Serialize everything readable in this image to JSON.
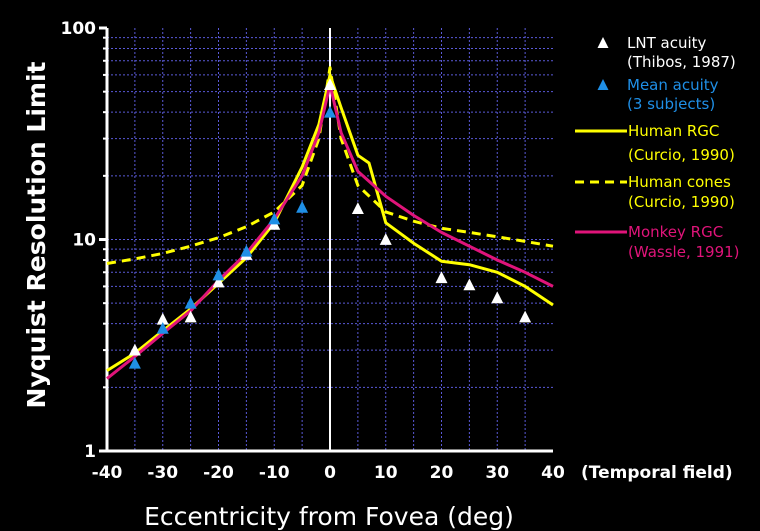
{
  "chart_data": {
    "type": "line",
    "xlabel": "Eccentricity from Fovea (deg)",
    "ylabel": "Nyquist Resolution Limit",
    "x_note": "(Temporal field)",
    "xlim": [
      -40,
      40
    ],
    "ylim": [
      1,
      100
    ],
    "yscale": "log",
    "x_ticks": [
      "-40",
      "-30",
      "-20",
      "-10",
      "0",
      "10",
      "20",
      "30",
      "40"
    ],
    "y_ticks": [
      "1",
      "10",
      "100"
    ],
    "grid": true,
    "legend_position": "right",
    "colors": {
      "white": "#ffffff",
      "blue": "#1f8fe6",
      "yellow": "#ffff00",
      "magenta": "#e0147a"
    },
    "series": [
      {
        "name": "LNT acuity",
        "name2": "(Thibos, 1987)",
        "kind": "marker",
        "color": "#ffffff",
        "x": [
          -35,
          -30,
          -25,
          -20,
          -15,
          -10,
          0,
          5,
          10,
          20,
          25,
          30,
          35
        ],
        "y": [
          3.0,
          4.2,
          4.3,
          6.3,
          8.5,
          11.8,
          54,
          14,
          10,
          6.6,
          6.1,
          5.3,
          4.3
        ]
      },
      {
        "name": "Mean acuity",
        "name2": "(3 subjects)",
        "kind": "marker",
        "color": "#1f8fe6",
        "x": [
          -35,
          -30,
          -25,
          -20,
          -15,
          -10,
          -5,
          0
        ],
        "y": [
          2.6,
          3.8,
          5.0,
          6.8,
          8.8,
          12.5,
          14.2,
          40
        ]
      },
      {
        "name": "Human RGC",
        "name2": "(Curcio, 1990)",
        "kind": "solid",
        "color": "#ffff00",
        "x": [
          -40,
          -35,
          -30,
          -25,
          -20,
          -15,
          -10,
          -5,
          -2,
          0,
          2,
          5,
          7,
          10,
          15,
          20,
          25,
          30,
          35,
          40
        ],
        "y": [
          2.4,
          2.9,
          3.7,
          4.7,
          6.2,
          8.2,
          12.0,
          22,
          35,
          60,
          42,
          25,
          23,
          12,
          9.6,
          7.9,
          7.6,
          7.0,
          6.0,
          4.9
        ]
      },
      {
        "name": "Human cones",
        "name2": "(Curcio, 1990)",
        "kind": "dashed",
        "color": "#ffff00",
        "x": [
          -40,
          -35,
          -30,
          -25,
          -20,
          -15,
          -10,
          -5,
          -2,
          0,
          2,
          5,
          10,
          15,
          20,
          25,
          30,
          35,
          40
        ],
        "y": [
          7.7,
          8.1,
          8.6,
          9.3,
          10.2,
          11.5,
          13.5,
          18,
          30,
          65,
          30,
          18,
          13.5,
          12.2,
          11.3,
          10.8,
          10.3,
          9.8,
          9.3
        ]
      },
      {
        "name": "Monkey RGC",
        "name2": "(Wassle, 1991)",
        "kind": "solid",
        "color": "#e0147a",
        "x": [
          -40,
          -35,
          -30,
          -25,
          -20,
          -15,
          -10,
          -5,
          -2,
          0,
          2,
          5,
          10,
          15,
          20,
          25,
          30,
          35,
          40
        ],
        "y": [
          2.2,
          2.8,
          3.6,
          4.6,
          6.4,
          8.6,
          12.5,
          20,
          32,
          54,
          32,
          21,
          16,
          13,
          10.8,
          9.3,
          8.0,
          7.0,
          6.0
        ]
      }
    ]
  }
}
